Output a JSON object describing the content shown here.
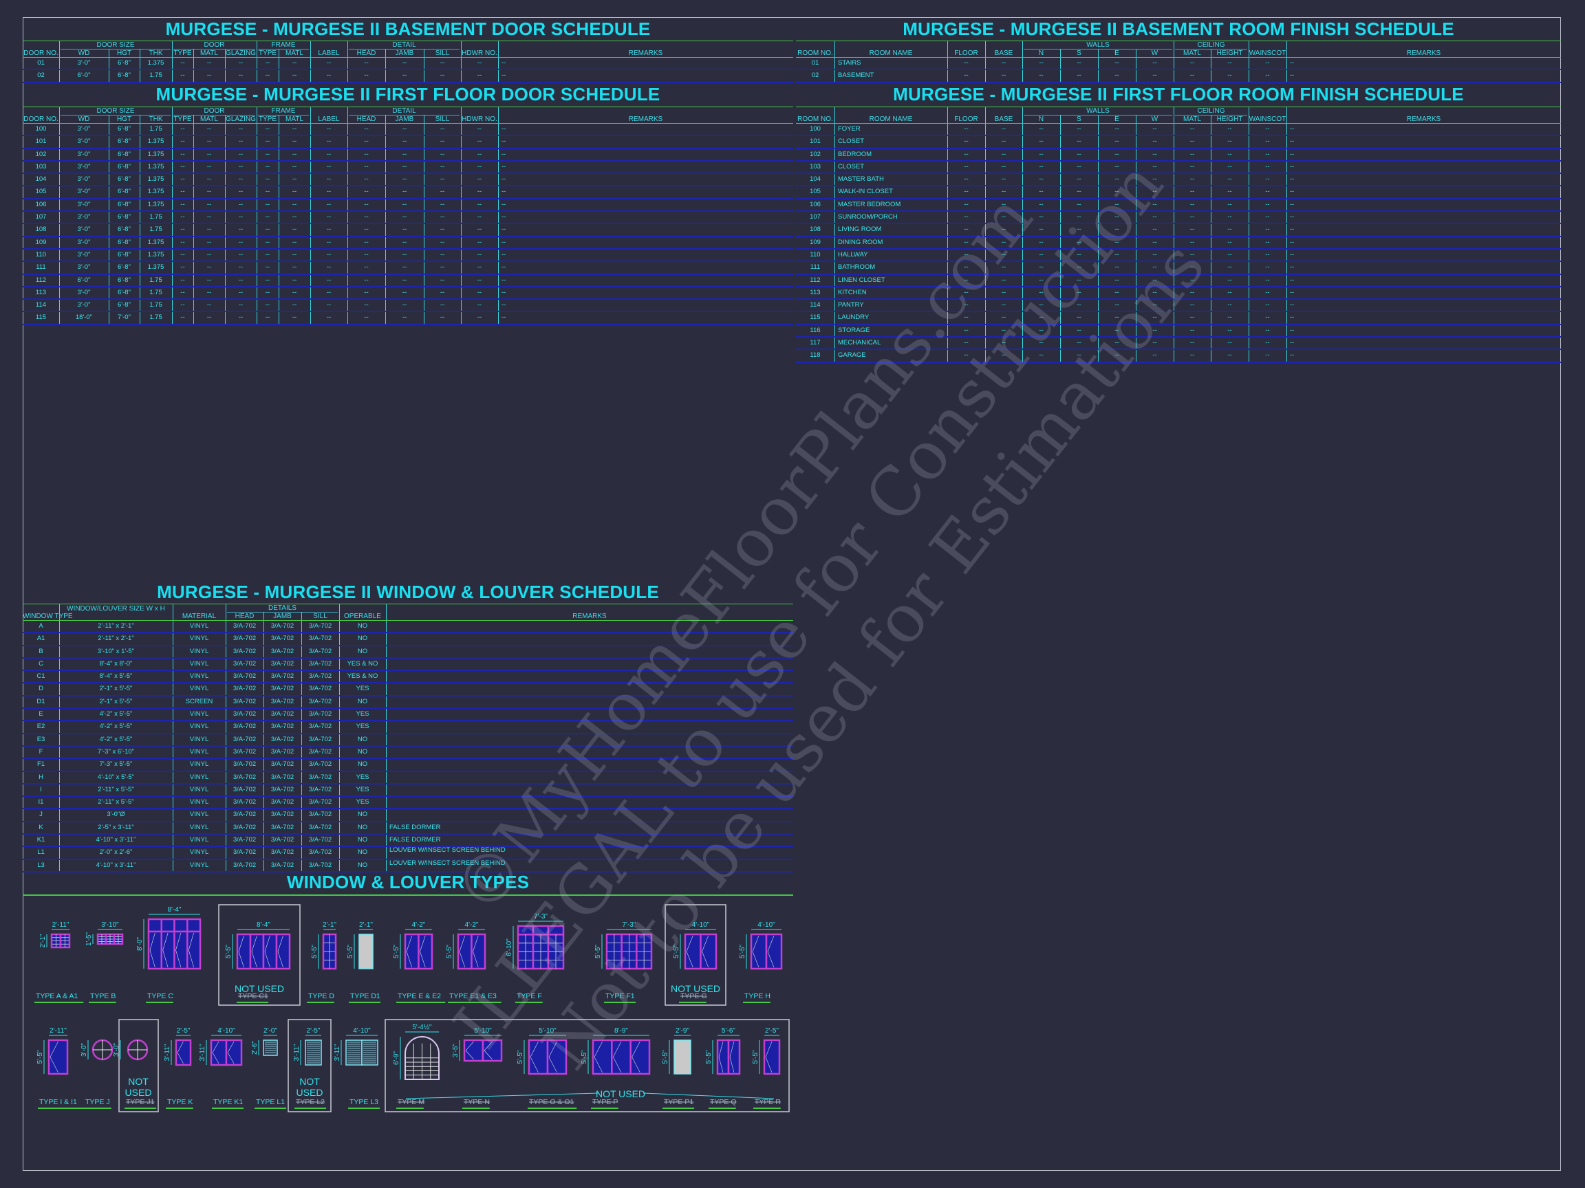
{
  "colors": {
    "background": "#2b2d3f",
    "text": "#35e3ea",
    "title": "#19e0f0",
    "rule_green": "#45c845",
    "row_line_blue": "#1c24b0",
    "window_frame": "#c23fcf",
    "glass": "#1b1fa6"
  },
  "door_header": {
    "groups": [
      "DOOR SIZE",
      "DOOR",
      "FRAME",
      "DETAIL"
    ],
    "columns": [
      "DOOR NO.",
      "WD",
      "HGT",
      "THK",
      "TYPE",
      "MATL",
      "GLAZING",
      "TYPE",
      "MATL",
      "LABEL",
      "HEAD",
      "JAMB",
      "SILL",
      "HDWR NO.",
      "REMARKS"
    ]
  },
  "room_header": {
    "groups": [
      "WALLS",
      "CEILING"
    ],
    "columns": [
      "ROOM NO.",
      "ROOM NAME",
      "FLOOR",
      "BASE",
      "N",
      "S",
      "E",
      "W",
      "MATL",
      "HEIGHT",
      "WAINSCOT",
      "REMARKS"
    ]
  },
  "window_header": {
    "groups": [
      "DETAILS"
    ],
    "columns": [
      "WINDOW TYPE",
      "WINDOW/LOUVER SIZE W x H",
      "MATERIAL",
      "HEAD",
      "JAMB",
      "SILL",
      "OPERABLE",
      "REMARKS"
    ]
  },
  "basement_door_schedule": {
    "title": "MURGESE - MURGESE II BASEMENT DOOR SCHEDULE",
    "rows": [
      [
        "01",
        "3'-0\"",
        "6'-8\"",
        "1.375",
        "--",
        "--",
        "--",
        "--",
        "--",
        "--",
        "--",
        "--",
        "--",
        "--",
        "--"
      ],
      [
        "02",
        "6'-0\"",
        "6'-8\"",
        "1.75",
        "--",
        "--",
        "--",
        "--",
        "--",
        "--",
        "--",
        "--",
        "--",
        "--",
        "--"
      ]
    ]
  },
  "first_floor_door_schedule": {
    "title": "MURGESE - MURGESE II FIRST FLOOR DOOR SCHEDULE",
    "rows": [
      [
        "100",
        "3'-0\"",
        "6'-8\"",
        "1.75",
        "--",
        "--",
        "--",
        "--",
        "--",
        "--",
        "--",
        "--",
        "--",
        "--",
        "--"
      ],
      [
        "101",
        "3'-0\"",
        "6'-8\"",
        "1.375",
        "--",
        "--",
        "--",
        "--",
        "--",
        "--",
        "--",
        "--",
        "--",
        "--",
        "--"
      ],
      [
        "102",
        "3'-0\"",
        "6'-8\"",
        "1.375",
        "--",
        "--",
        "--",
        "--",
        "--",
        "--",
        "--",
        "--",
        "--",
        "--",
        "--"
      ],
      [
        "103",
        "3'-0\"",
        "6'-8\"",
        "1.375",
        "--",
        "--",
        "--",
        "--",
        "--",
        "--",
        "--",
        "--",
        "--",
        "--",
        "--"
      ],
      [
        "104",
        "3'-0\"",
        "6'-8\"",
        "1.375",
        "--",
        "--",
        "--",
        "--",
        "--",
        "--",
        "--",
        "--",
        "--",
        "--",
        "--"
      ],
      [
        "105",
        "3'-0\"",
        "6'-8\"",
        "1.375",
        "--",
        "--",
        "--",
        "--",
        "--",
        "--",
        "--",
        "--",
        "--",
        "--",
        "--"
      ],
      [
        "106",
        "3'-0\"",
        "6'-8\"",
        "1.375",
        "--",
        "--",
        "--",
        "--",
        "--",
        "--",
        "--",
        "--",
        "--",
        "--",
        "--"
      ],
      [
        "107",
        "3'-0\"",
        "6'-8\"",
        "1.75",
        "--",
        "--",
        "--",
        "--",
        "--",
        "--",
        "--",
        "--",
        "--",
        "--",
        "--"
      ],
      [
        "108",
        "3'-0\"",
        "6'-8\"",
        "1.75",
        "--",
        "--",
        "--",
        "--",
        "--",
        "--",
        "--",
        "--",
        "--",
        "--",
        "--"
      ],
      [
        "109",
        "3'-0\"",
        "6'-8\"",
        "1.375",
        "--",
        "--",
        "--",
        "--",
        "--",
        "--",
        "--",
        "--",
        "--",
        "--",
        "--"
      ],
      [
        "110",
        "3'-0\"",
        "6'-8\"",
        "1.375",
        "--",
        "--",
        "--",
        "--",
        "--",
        "--",
        "--",
        "--",
        "--",
        "--",
        "--"
      ],
      [
        "111",
        "3'-0\"",
        "6'-8\"",
        "1.375",
        "--",
        "--",
        "--",
        "--",
        "--",
        "--",
        "--",
        "--",
        "--",
        "--",
        "--"
      ],
      [
        "112",
        "6'-0\"",
        "6'-8\"",
        "1.75",
        "--",
        "--",
        "--",
        "--",
        "--",
        "--",
        "--",
        "--",
        "--",
        "--",
        "--"
      ],
      [
        "113",
        "3'-0\"",
        "6'-8\"",
        "1.75",
        "--",
        "--",
        "--",
        "--",
        "--",
        "--",
        "--",
        "--",
        "--",
        "--",
        "--"
      ],
      [
        "114",
        "3'-0\"",
        "6'-8\"",
        "1.75",
        "--",
        "--",
        "--",
        "--",
        "--",
        "--",
        "--",
        "--",
        "--",
        "--",
        "--"
      ],
      [
        "115",
        "18'-0\"",
        "7'-0\"",
        "1.75",
        "--",
        "--",
        "--",
        "--",
        "--",
        "--",
        "--",
        "--",
        "--",
        "--",
        "--"
      ]
    ]
  },
  "basement_room_finish_schedule": {
    "title": "MURGESE - MURGESE II BASEMENT ROOM FINISH SCHEDULE",
    "rows": [
      [
        "01",
        "STAIRS",
        "--",
        "--",
        "--",
        "--",
        "--",
        "--",
        "--",
        "--",
        "--",
        "--"
      ],
      [
        "02",
        "BASEMENT",
        "--",
        "--",
        "--",
        "--",
        "--",
        "--",
        "--",
        "--",
        "--",
        "--"
      ]
    ]
  },
  "first_floor_room_finish_schedule": {
    "title": "MURGESE - MURGESE II FIRST FLOOR ROOM FINISH SCHEDULE",
    "rows": [
      [
        "100",
        "FOYER",
        "--",
        "--",
        "--",
        "--",
        "--",
        "--",
        "--",
        "--",
        "--",
        "--"
      ],
      [
        "101",
        "CLOSET",
        "--",
        "--",
        "--",
        "--",
        "--",
        "--",
        "--",
        "--",
        "--",
        "--"
      ],
      [
        "102",
        "BEDROOM",
        "--",
        "--",
        "--",
        "--",
        "--",
        "--",
        "--",
        "--",
        "--",
        "--"
      ],
      [
        "103",
        "CLOSET",
        "--",
        "--",
        "--",
        "--",
        "--",
        "--",
        "--",
        "--",
        "--",
        "--"
      ],
      [
        "104",
        "MASTER BATH",
        "--",
        "--",
        "--",
        "--",
        "--",
        "--",
        "--",
        "--",
        "--",
        "--"
      ],
      [
        "105",
        "WALK-IN CLOSET",
        "--",
        "--",
        "--",
        "--",
        "--",
        "--",
        "--",
        "--",
        "--",
        "--"
      ],
      [
        "106",
        "MASTER BEDROOM",
        "--",
        "--",
        "--",
        "--",
        "--",
        "--",
        "--",
        "--",
        "--",
        "--"
      ],
      [
        "107",
        "SUNROOM/PORCH",
        "--",
        "--",
        "--",
        "--",
        "--",
        "--",
        "--",
        "--",
        "--",
        "--"
      ],
      [
        "108",
        "LIVING ROOM",
        "--",
        "--",
        "--",
        "--",
        "--",
        "--",
        "--",
        "--",
        "--",
        "--"
      ],
      [
        "109",
        "DINING ROOM",
        "--",
        "--",
        "--",
        "--",
        "--",
        "--",
        "--",
        "--",
        "--",
        "--"
      ],
      [
        "110",
        "HALLWAY",
        "--",
        "--",
        "--",
        "--",
        "--",
        "--",
        "--",
        "--",
        "--",
        "--"
      ],
      [
        "111",
        "BATHROOM",
        "--",
        "--",
        "--",
        "--",
        "--",
        "--",
        "--",
        "--",
        "--",
        "--"
      ],
      [
        "112",
        "LINEN CLOSET",
        "--",
        "--",
        "--",
        "--",
        "--",
        "--",
        "--",
        "--",
        "--",
        "--"
      ],
      [
        "113",
        "KITCHEN",
        "--",
        "--",
        "--",
        "--",
        "--",
        "--",
        "--",
        "--",
        "--",
        "--"
      ],
      [
        "114",
        "PANTRY",
        "--",
        "--",
        "--",
        "--",
        "--",
        "--",
        "--",
        "--",
        "--",
        "--"
      ],
      [
        "115",
        "LAUNDRY",
        "--",
        "--",
        "--",
        "--",
        "--",
        "--",
        "--",
        "--",
        "--",
        "--"
      ],
      [
        "116",
        "STORAGE",
        "--",
        "--",
        "--",
        "--",
        "--",
        "--",
        "--",
        "--",
        "--",
        "--"
      ],
      [
        "117",
        "MECHANICAL",
        "--",
        "--",
        "--",
        "--",
        "--",
        "--",
        "--",
        "--",
        "--",
        "--"
      ],
      [
        "118",
        "GARAGE",
        "--",
        "--",
        "--",
        "--",
        "--",
        "--",
        "--",
        "--",
        "--",
        "--"
      ]
    ]
  },
  "window_louver_schedule": {
    "title": "MURGESE - MURGESE II WINDOW & LOUVER SCHEDULE",
    "rows": [
      [
        "A",
        "2'-11\" x 2'-1\"",
        "VINYL",
        "3/A-702",
        "3/A-702",
        "3/A-702",
        "NO",
        ""
      ],
      [
        "A1",
        "2'-11\" x 2'-1\"",
        "VINYL",
        "3/A-702",
        "3/A-702",
        "3/A-702",
        "NO",
        ""
      ],
      [
        "B",
        "3'-10\" x 1'-5\"",
        "VINYL",
        "3/A-702",
        "3/A-702",
        "3/A-702",
        "NO",
        ""
      ],
      [
        "C",
        "8'-4\" x 8'-0\"",
        "VINYL",
        "3/A-702",
        "3/A-702",
        "3/A-702",
        "YES & NO",
        ""
      ],
      [
        "C1",
        "8'-4\" x 5'-5\"",
        "VINYL",
        "3/A-702",
        "3/A-702",
        "3/A-702",
        "YES & NO",
        ""
      ],
      [
        "D",
        "2'-1\" x 5'-5\"",
        "VINYL",
        "3/A-702",
        "3/A-702",
        "3/A-702",
        "YES",
        ""
      ],
      [
        "D1",
        "2'-1\" x 5'-5\"",
        "SCREEN",
        "3/A-702",
        "3/A-702",
        "3/A-702",
        "NO",
        ""
      ],
      [
        "E",
        "4'-2\" x 5'-5\"",
        "VINYL",
        "3/A-702",
        "3/A-702",
        "3/A-702",
        "YES",
        ""
      ],
      [
        "E2",
        "4'-2\" x 5'-5\"",
        "VINYL",
        "3/A-702",
        "3/A-702",
        "3/A-702",
        "YES",
        ""
      ],
      [
        "E3",
        "4'-2\" x 5'-5\"",
        "VINYL",
        "3/A-702",
        "3/A-702",
        "3/A-702",
        "NO",
        ""
      ],
      [
        "F",
        "7'-3\" x 6'-10\"",
        "VINYL",
        "3/A-702",
        "3/A-702",
        "3/A-702",
        "NO",
        ""
      ],
      [
        "F1",
        "7'-3\" x 5'-5\"",
        "VINYL",
        "3/A-702",
        "3/A-702",
        "3/A-702",
        "NO",
        ""
      ],
      [
        "H",
        "4'-10\" x 5'-5\"",
        "VINYL",
        "3/A-702",
        "3/A-702",
        "3/A-702",
        "YES",
        ""
      ],
      [
        "I",
        "2'-11\" x 5'-5\"",
        "VINYL",
        "3/A-702",
        "3/A-702",
        "3/A-702",
        "YES",
        ""
      ],
      [
        "I1",
        "2'-11\" x 5'-5\"",
        "VINYL",
        "3/A-702",
        "3/A-702",
        "3/A-702",
        "YES",
        ""
      ],
      [
        "J",
        "3'-0\"Ø",
        "VINYL",
        "3/A-702",
        "3/A-702",
        "3/A-702",
        "NO",
        ""
      ],
      [
        "K",
        "2'-5\" x 3'-11\"",
        "VINYL",
        "3/A-702",
        "3/A-702",
        "3/A-702",
        "NO",
        "FALSE DORMER"
      ],
      [
        "K1",
        "4'-10\" x 3'-11\"",
        "VINYL",
        "3/A-702",
        "3/A-702",
        "3/A-702",
        "NO",
        "FALSE DORMER"
      ],
      [
        "L1",
        "2'-0\" x 2'-6\"",
        "VINYL",
        "3/A-702",
        "3/A-702",
        "3/A-702",
        "NO",
        "LOUVER W/INSECT SCREEN BEHIND"
      ],
      [
        "L3",
        "4'-10\" x 3'-11\"",
        "VINYL",
        "3/A-702",
        "3/A-702",
        "3/A-702",
        "NO",
        "LOUVER W/INSECT SCREEN BEHIND"
      ]
    ]
  },
  "window_types": {
    "title": "WINDOW & LOUVER TYPES",
    "not_used_label": "NOT USED",
    "types": [
      {
        "id": "A",
        "label": "TYPE A & A1",
        "width": "2'-11\"",
        "height": "2'-1\"",
        "not_used": false
      },
      {
        "id": "B",
        "label": "TYPE B",
        "width": "3'-10\"",
        "height": "1'-5\"",
        "not_used": false
      },
      {
        "id": "C",
        "label": "TYPE C",
        "width": "8'-4\"",
        "height": "8'-0\"",
        "not_used": false
      },
      {
        "id": "C1",
        "label": "TYPE C1",
        "width": "8'-4\"",
        "height": "5'-5\"",
        "not_used": true
      },
      {
        "id": "D",
        "label": "TYPE D",
        "width": "2'-1\"",
        "height": "5'-5\"",
        "not_used": false
      },
      {
        "id": "D1",
        "label": "TYPE D1",
        "width": "2'-1\"",
        "height": "5'-5\"",
        "not_used": false
      },
      {
        "id": "E",
        "label": "TYPE E & E2",
        "width": "4'-2\"",
        "height": "5'-5\"",
        "not_used": false
      },
      {
        "id": "E1",
        "label": "TYPE E1 & E3",
        "width": "4'-2\"",
        "height": "5'-5\"",
        "not_used": false
      },
      {
        "id": "F",
        "label": "TYPE F",
        "width": "7'-3\"",
        "height": "6'-10\"",
        "not_used": false
      },
      {
        "id": "F1",
        "label": "TYPE F1",
        "width": "7'-3\"",
        "height": "5'-5\"",
        "not_used": false
      },
      {
        "id": "G",
        "label": "TYPE G",
        "width": "4'-10\"",
        "height": "5'-5\"",
        "not_used": true
      },
      {
        "id": "H",
        "label": "TYPE H",
        "width": "4'-10\"",
        "height": "5'-5\"",
        "not_used": false
      },
      {
        "id": "I",
        "label": "TYPE I & I1",
        "width": "2'-11\"",
        "height": "5'-5\"",
        "not_used": false
      },
      {
        "id": "J",
        "label": "TYPE J",
        "width": "",
        "height": "3'-0\"",
        "not_used": false
      },
      {
        "id": "J1",
        "label": "TYPE J1",
        "width": "",
        "height": "3'-0\"",
        "not_used": true
      },
      {
        "id": "K",
        "label": "TYPE K",
        "width": "2'-5\"",
        "height": "3'-11\"",
        "not_used": false
      },
      {
        "id": "K1",
        "label": "TYPE K1",
        "width": "4'-10\"",
        "height": "3'-11\"",
        "not_used": false
      },
      {
        "id": "L1",
        "label": "TYPE L1",
        "width": "2'-0\"",
        "height": "2'-6\"",
        "not_used": false
      },
      {
        "id": "L2",
        "label": "TYPE L2",
        "width": "2'-5\"",
        "height": "3'-11\"",
        "not_used": true
      },
      {
        "id": "L3",
        "label": "TYPE L3",
        "width": "4'-10\"",
        "height": "3'-11\"",
        "not_used": false
      },
      {
        "id": "M",
        "label": "TYPE M",
        "width": "5'-4½\"",
        "height": "6'-9\"",
        "not_used": true
      },
      {
        "id": "N",
        "label": "TYPE N",
        "width": "5'-10\"",
        "height": "3'-5\"",
        "not_used": true
      },
      {
        "id": "O",
        "label": "TYPE O & O1",
        "width": "5'-10\"",
        "height": "5'-5\"",
        "not_used": true
      },
      {
        "id": "P",
        "label": "TYPE P",
        "width": "8'-9\"",
        "height": "5'-5\"",
        "not_used": true
      },
      {
        "id": "P1",
        "label": "TYPE P1",
        "width": "2'-9\"",
        "height": "5'-5\"",
        "not_used": true
      },
      {
        "id": "Q",
        "label": "TYPE Q",
        "width": "5'-6\"",
        "height": "5'-5\"",
        "not_used": true
      },
      {
        "id": "R",
        "label": "TYPE R",
        "width": "2'-5\"",
        "height": "5'-5\"",
        "not_used": true
      }
    ]
  },
  "watermark": [
    "©MyHomeFloorPlans.com",
    "ILLEGAL to use for Construction",
    "Not to be used for Estimations"
  ]
}
